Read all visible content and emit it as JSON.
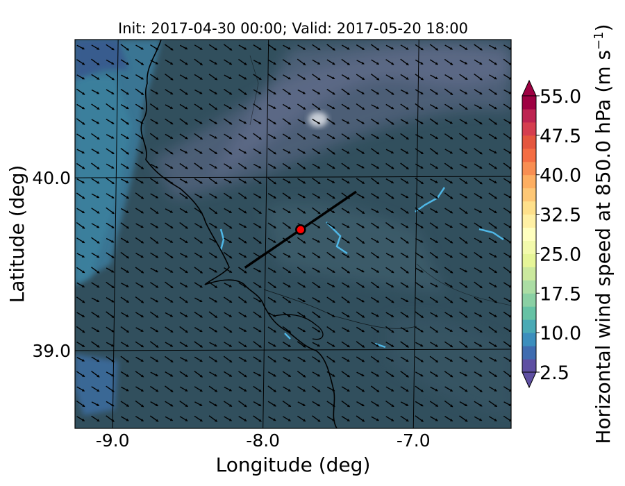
{
  "chart_data": {
    "type": "heatmap",
    "title": "Init: 2017-04-30 00:00; Valid: 2017-05-20 18:00",
    "xlabel": "Longitude (deg)",
    "ylabel": "Latitude (deg)",
    "xlim": [
      -9.25,
      -6.35
    ],
    "ylim": [
      38.55,
      40.8
    ],
    "x_ticks": [
      "-9.0",
      "-8.0",
      "-7.0"
    ],
    "x_tick_values": [
      -9.0,
      -8.0,
      -7.0
    ],
    "y_ticks": [
      "40.0",
      "39.0"
    ],
    "y_tick_values": [
      40.0,
      39.0
    ],
    "grid": true,
    "colorbar": {
      "label": "Horizontal wind speed at 850.0 hPa (m s",
      "label_superscript": "−1",
      "label_close": ")",
      "min": 2.5,
      "max": 55.0,
      "step": 2.5,
      "tick_labels": [
        "55.0",
        "47.5",
        "40.0",
        "32.5",
        "25.0",
        "17.5",
        "10.0",
        "2.5"
      ],
      "tick_values": [
        55.0,
        47.5,
        40.0,
        32.5,
        25.0,
        17.5,
        10.0,
        2.5
      ],
      "extend": "both",
      "colormap": "Spectral_r"
    },
    "wind_arrows": {
      "direction_to": "southeast",
      "field_speed_range": [
        2.5,
        12.5
      ]
    },
    "cross_section_line": {
      "start": {
        "lon": -8.12,
        "lat": 39.48
      },
      "end": {
        "lon": -7.38,
        "lat": 39.92
      },
      "color": "#000000"
    },
    "marker": {
      "lon": -7.75,
      "lat": 39.7,
      "color": "#ff0000",
      "edge": "#000000"
    }
  }
}
